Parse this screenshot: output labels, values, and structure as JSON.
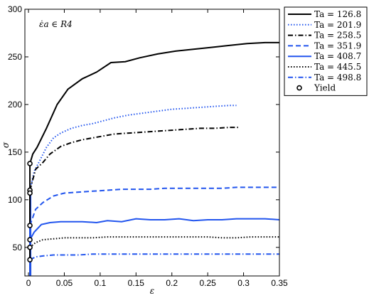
{
  "chart_data": {
    "type": "line",
    "title": "",
    "annotation": "ε̇a ∈ R4",
    "xlabel": "ε",
    "ylabel": "σ",
    "xlim": [
      -0.005,
      0.35
    ],
    "ylim": [
      20,
      300
    ],
    "xticks": [
      0,
      0.05,
      0.1,
      0.15,
      0.2,
      0.25,
      0.3,
      0.35
    ],
    "xtick_labels": [
      "0",
      "0.05",
      "0.1",
      "0.15",
      "0.2",
      "0.25",
      "0.3",
      "0.35"
    ],
    "yticks": [
      50,
      100,
      150,
      200,
      250,
      300
    ],
    "ytick_labels": [
      "50",
      "100",
      "150",
      "200",
      "250",
      "300"
    ],
    "grid": false,
    "legend_position": "outside-top-right",
    "series": [
      {
        "name": "Ta = 126.8",
        "color": "#000000",
        "style": "solid",
        "x": [
          0.002,
          0.006,
          0.012,
          0.025,
          0.04,
          0.055,
          0.075,
          0.095,
          0.115,
          0.135,
          0.155,
          0.18,
          0.205,
          0.23,
          0.255,
          0.28,
          0.305,
          0.33,
          0.35
        ],
        "y": [
          138,
          148,
          155,
          175,
          200,
          216,
          227,
          234,
          244,
          245,
          249,
          253,
          256,
          258,
          260,
          262,
          264,
          265,
          265
        ]
      },
      {
        "name": "Ta = 201.9",
        "color": "#2255ee",
        "style": "dotted",
        "x": [
          0.003,
          0.008,
          0.015,
          0.025,
          0.035,
          0.045,
          0.06,
          0.075,
          0.09,
          0.105,
          0.12,
          0.14,
          0.16,
          0.18,
          0.2,
          0.22,
          0.24,
          0.26,
          0.28,
          0.29
        ],
        "y": [
          113,
          130,
          140,
          155,
          165,
          170,
          175,
          178,
          180,
          183,
          186,
          189,
          191,
          193,
          195,
          196,
          197,
          198,
          199,
          199
        ]
      },
      {
        "name": "Ta = 258.5",
        "color": "#000000",
        "style": "dashdot",
        "x": [
          0.002,
          0.01,
          0.02,
          0.03,
          0.045,
          0.06,
          0.075,
          0.09,
          0.105,
          0.12,
          0.14,
          0.16,
          0.18,
          0.2,
          0.22,
          0.24,
          0.26,
          0.28,
          0.295
        ],
        "y": [
          110,
          132,
          139,
          148,
          156,
          160,
          163,
          165,
          167,
          169,
          170,
          171,
          172,
          173,
          174,
          175,
          175,
          176,
          176
        ]
      },
      {
        "name": "Ta = 351.9",
        "color": "#2255ee",
        "style": "dashed",
        "x": [
          0.002,
          0.01,
          0.02,
          0.035,
          0.05,
          0.07,
          0.09,
          0.11,
          0.13,
          0.15,
          0.17,
          0.19,
          0.21,
          0.23,
          0.25,
          0.27,
          0.29,
          0.31,
          0.33,
          0.35
        ],
        "y": [
          73,
          90,
          97,
          104,
          107,
          108,
          109,
          110,
          111,
          111,
          111,
          112,
          112,
          112,
          112,
          112,
          113,
          113,
          113,
          113
        ]
      },
      {
        "name": "Ta = 408.7",
        "color": "#2255ee",
        "style": "solid",
        "x": [
          0.002,
          0.008,
          0.018,
          0.03,
          0.045,
          0.06,
          0.075,
          0.095,
          0.11,
          0.13,
          0.15,
          0.17,
          0.19,
          0.21,
          0.23,
          0.25,
          0.27,
          0.29,
          0.31,
          0.33,
          0.35
        ],
        "y": [
          58,
          66,
          74,
          76,
          77,
          77,
          77,
          76,
          78,
          77,
          80,
          79,
          79,
          80,
          78,
          79,
          79,
          80,
          80,
          80,
          79
        ]
      },
      {
        "name": "Ta = 445.5",
        "color": "#000000",
        "style": "dotted",
        "x": [
          0.002,
          0.01,
          0.02,
          0.035,
          0.05,
          0.07,
          0.09,
          0.11,
          0.13,
          0.15,
          0.17,
          0.19,
          0.21,
          0.23,
          0.25,
          0.27,
          0.29,
          0.31,
          0.33,
          0.35
        ],
        "y": [
          50,
          55,
          58,
          59,
          60,
          60,
          60,
          61,
          61,
          61,
          61,
          61,
          61,
          61,
          61,
          60,
          60,
          61,
          61,
          61
        ]
      },
      {
        "name": "Ta = 498.8",
        "color": "#2255ee",
        "style": "dashdot",
        "x": [
          0.002,
          0.01,
          0.02,
          0.035,
          0.05,
          0.07,
          0.09,
          0.11,
          0.13,
          0.15,
          0.17,
          0.19,
          0.21,
          0.23,
          0.25,
          0.27,
          0.29,
          0.31,
          0.33,
          0.35
        ],
        "y": [
          37,
          40,
          41,
          42,
          42,
          42,
          43,
          43,
          43,
          43,
          43,
          43,
          43,
          43,
          43,
          43,
          43,
          43,
          43,
          43
        ]
      }
    ],
    "yield_points": {
      "name": "Yield",
      "x": [
        0.002,
        0.002,
        0.002,
        0.002,
        0.002,
        0.002,
        0.002
      ],
      "y": [
        138,
        110,
        107,
        73,
        58,
        50,
        37
      ]
    }
  }
}
